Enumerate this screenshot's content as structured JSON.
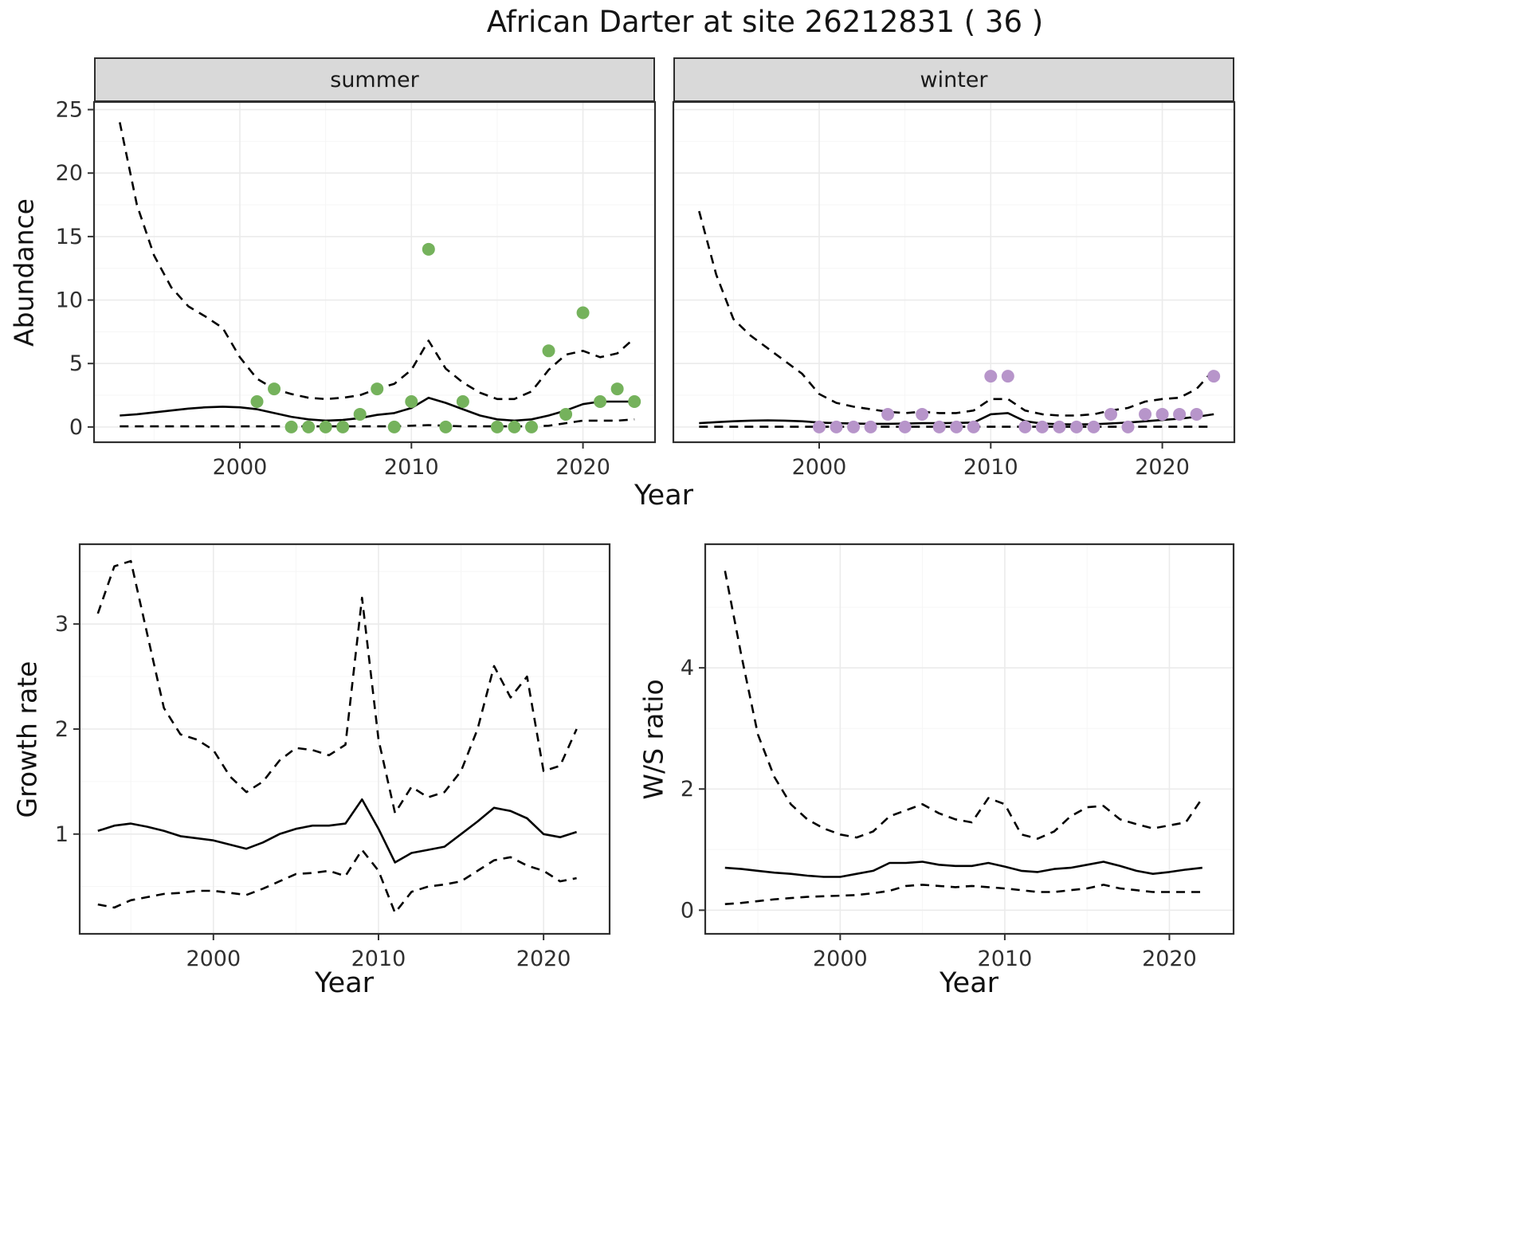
{
  "title": "African Darter at site 26212831 ( 36 )",
  "axes": {
    "abundance_label": "Abundance",
    "year_label": "Year",
    "growth_label": "Growth rate",
    "ws_label": "W/S ratio"
  },
  "colors": {
    "summer_point": "#75b25c",
    "winter_point": "#b795ca",
    "line": "#000000",
    "strip_bg": "#d9d9d9",
    "grid_major": "#ebebeb",
    "grid_minor": "#f6f6f6",
    "panel_border": "#2e2e2e",
    "tick_label": "#303030"
  },
  "chart_data": [
    {
      "id": "abundance-summer",
      "type": "scatter",
      "facet": "summer",
      "xlabel": "Year",
      "ylabel": "Abundance",
      "xlim": [
        1991.5,
        2024.2
      ],
      "ylim": [
        -1.2,
        25.6
      ],
      "xticks": [
        2000,
        2010,
        2020
      ],
      "yticks": [
        0,
        5,
        10,
        15,
        20,
        25
      ],
      "legend": "none",
      "grid": true,
      "years": [
        1993,
        1994,
        1995,
        1996,
        1997,
        1998,
        1999,
        2000,
        2001,
        2002,
        2003,
        2004,
        2005,
        2006,
        2007,
        2008,
        2009,
        2010,
        2011,
        2012,
        2013,
        2014,
        2015,
        2016,
        2017,
        2018,
        2019,
        2020,
        2021,
        2022,
        2023
      ],
      "fit": [
        0.9,
        1.0,
        1.15,
        1.3,
        1.45,
        1.55,
        1.6,
        1.55,
        1.4,
        1.1,
        0.8,
        0.6,
        0.5,
        0.55,
        0.7,
        0.95,
        1.1,
        1.5,
        2.3,
        1.9,
        1.4,
        0.9,
        0.6,
        0.5,
        0.6,
        0.9,
        1.3,
        1.8,
        2.0,
        2.0,
        2.0
      ],
      "upper": [
        24,
        17.5,
        13.5,
        11,
        9.5,
        8.7,
        7.8,
        5.5,
        3.8,
        3.0,
        2.6,
        2.3,
        2.2,
        2.3,
        2.5,
        3.0,
        3.4,
        4.5,
        6.8,
        4.6,
        3.5,
        2.7,
        2.2,
        2.2,
        2.8,
        4.5,
        5.7,
        6.0,
        5.5,
        5.8,
        7.0
      ],
      "lower": [
        0.05,
        0.05,
        0.05,
        0.05,
        0.05,
        0.05,
        0.05,
        0.05,
        0.05,
        0.05,
        0.05,
        0.05,
        0.05,
        0.05,
        0.05,
        0.05,
        0.05,
        0.1,
        0.15,
        0.1,
        0.05,
        0.05,
        0.05,
        0.05,
        0.05,
        0.1,
        0.3,
        0.5,
        0.5,
        0.5,
        0.6
      ],
      "points": {
        "x": [
          2001,
          2002,
          2003,
          2004,
          2005,
          2006,
          2007,
          2008,
          2009,
          2010,
          2011,
          2012,
          2013,
          2015,
          2016,
          2017,
          2018,
          2019,
          2020,
          2021,
          2022,
          2023
        ],
        "y": [
          2,
          3,
          0,
          0,
          0,
          0,
          1,
          3,
          0,
          2,
          14,
          0,
          2,
          0,
          0,
          0,
          6,
          1,
          9,
          2,
          3,
          2
        ]
      }
    },
    {
      "id": "abundance-winter",
      "type": "scatter",
      "facet": "winter",
      "xlabel": "Year",
      "ylabel": "Abundance",
      "xlim": [
        1991.5,
        2024.2
      ],
      "ylim": [
        -1.2,
        25.6
      ],
      "xticks": [
        2000,
        2010,
        2020
      ],
      "yticks": [
        0,
        5,
        10,
        15,
        20,
        25
      ],
      "legend": "none",
      "grid": true,
      "years": [
        1993,
        1994,
        1995,
        1996,
        1997,
        1998,
        1999,
        2000,
        2001,
        2002,
        2003,
        2004,
        2005,
        2006,
        2007,
        2008,
        2009,
        2010,
        2011,
        2012,
        2013,
        2014,
        2015,
        2016,
        2017,
        2018,
        2019,
        2020,
        2021,
        2022,
        2023
      ],
      "fit": [
        0.3,
        0.38,
        0.45,
        0.5,
        0.52,
        0.5,
        0.45,
        0.35,
        0.3,
        0.27,
        0.25,
        0.25,
        0.27,
        0.3,
        0.3,
        0.32,
        0.35,
        1.0,
        1.1,
        0.45,
        0.27,
        0.22,
        0.2,
        0.22,
        0.28,
        0.35,
        0.45,
        0.55,
        0.65,
        0.8,
        1.0
      ],
      "upper": [
        17,
        12,
        8.5,
        7.2,
        6.2,
        5.2,
        4.2,
        2.6,
        1.9,
        1.6,
        1.4,
        1.2,
        1.1,
        1.2,
        1.1,
        1.1,
        1.3,
        2.2,
        2.2,
        1.3,
        1.0,
        0.9,
        0.9,
        1.0,
        1.3,
        1.5,
        2.0,
        2.2,
        2.3,
        3.0,
        4.5
      ],
      "lower": [
        0.02,
        0.02,
        0.02,
        0.02,
        0.02,
        0.02,
        0.02,
        0.02,
        0.02,
        0.02,
        0.02,
        0.02,
        0.02,
        0.02,
        0.02,
        0.02,
        0.02,
        0.02,
        0.02,
        0.02,
        0.02,
        0.02,
        0.02,
        0.02,
        0.02,
        0.02,
        0.02,
        0.02,
        0.02,
        0.02,
        0.02
      ],
      "points": {
        "x": [
          2000,
          2001,
          2002,
          2003,
          2004,
          2005,
          2006,
          2007,
          2008,
          2009,
          2010,
          2011,
          2012,
          2013,
          2014,
          2015,
          2016,
          2017,
          2018,
          2019,
          2020,
          2021,
          2022,
          2023
        ],
        "y": [
          0,
          0,
          0,
          0,
          1,
          0,
          1,
          0,
          0,
          0,
          4,
          4,
          0,
          0,
          0,
          0,
          0,
          1,
          0,
          1,
          1,
          1,
          1,
          4
        ]
      }
    },
    {
      "id": "growth-rate",
      "type": "line",
      "facet": null,
      "xlabel": "Year",
      "ylabel": "Growth rate",
      "xlim": [
        1991.9,
        2024.0
      ],
      "ylim": [
        0.05,
        3.76
      ],
      "xticks": [
        2000,
        2010,
        2020
      ],
      "yticks": [
        1,
        2,
        3
      ],
      "legend": "none",
      "grid": true,
      "years": [
        1993,
        1994,
        1995,
        1996,
        1997,
        1998,
        1999,
        2000,
        2001,
        2002,
        2003,
        2004,
        2005,
        2006,
        2007,
        2008,
        2009,
        2010,
        2011,
        2012,
        2013,
        2014,
        2015,
        2016,
        2017,
        2018,
        2019,
        2020,
        2021,
        2022
      ],
      "fit": [
        1.03,
        1.08,
        1.1,
        1.07,
        1.03,
        0.98,
        0.96,
        0.94,
        0.9,
        0.86,
        0.92,
        1.0,
        1.05,
        1.08,
        1.08,
        1.1,
        1.33,
        1.05,
        0.73,
        0.82,
        0.85,
        0.88,
        1.0,
        1.12,
        1.25,
        1.22,
        1.15,
        1.0,
        0.97,
        1.02
      ],
      "upper": [
        3.1,
        3.55,
        3.6,
        2.9,
        2.2,
        1.95,
        1.9,
        1.8,
        1.55,
        1.4,
        1.5,
        1.7,
        1.82,
        1.8,
        1.75,
        1.85,
        3.25,
        1.9,
        1.2,
        1.45,
        1.35,
        1.4,
        1.6,
        2.0,
        2.6,
        2.3,
        2.5,
        1.6,
        1.65,
        2.0
      ],
      "lower": [
        0.33,
        0.3,
        0.37,
        0.4,
        0.43,
        0.44,
        0.46,
        0.46,
        0.44,
        0.42,
        0.48,
        0.55,
        0.62,
        0.63,
        0.65,
        0.6,
        0.85,
        0.65,
        0.25,
        0.45,
        0.5,
        0.52,
        0.55,
        0.65,
        0.75,
        0.78,
        0.7,
        0.65,
        0.55,
        0.58
      ]
    },
    {
      "id": "ws-ratio",
      "type": "line",
      "facet": null,
      "xlabel": "Year",
      "ylabel": "W/S ratio",
      "xlim": [
        1991.8,
        2023.9
      ],
      "ylim": [
        -0.39,
        6.04
      ],
      "xticks": [
        2000,
        2010,
        2020
      ],
      "yticks": [
        0,
        2,
        4
      ],
      "legend": "none",
      "grid": true,
      "years": [
        1993,
        1994,
        1995,
        1996,
        1997,
        1998,
        1999,
        2000,
        2001,
        2002,
        2003,
        2004,
        2005,
        2006,
        2007,
        2008,
        2009,
        2010,
        2011,
        2012,
        2013,
        2014,
        2015,
        2016,
        2017,
        2018,
        2019,
        2020,
        2021,
        2022
      ],
      "fit": [
        0.7,
        0.68,
        0.65,
        0.62,
        0.6,
        0.57,
        0.55,
        0.55,
        0.6,
        0.65,
        0.78,
        0.78,
        0.8,
        0.75,
        0.73,
        0.73,
        0.78,
        0.72,
        0.65,
        0.63,
        0.68,
        0.7,
        0.75,
        0.8,
        0.73,
        0.65,
        0.6,
        0.63,
        0.67,
        0.7
      ],
      "upper": [
        5.6,
        4.2,
        2.9,
        2.2,
        1.75,
        1.5,
        1.35,
        1.25,
        1.2,
        1.3,
        1.55,
        1.65,
        1.75,
        1.6,
        1.5,
        1.45,
        1.85,
        1.75,
        1.25,
        1.18,
        1.3,
        1.55,
        1.7,
        1.72,
        1.5,
        1.42,
        1.35,
        1.4,
        1.45,
        1.85
      ],
      "lower": [
        0.1,
        0.12,
        0.15,
        0.18,
        0.2,
        0.22,
        0.23,
        0.24,
        0.25,
        0.28,
        0.32,
        0.4,
        0.42,
        0.4,
        0.38,
        0.4,
        0.38,
        0.36,
        0.33,
        0.3,
        0.3,
        0.33,
        0.36,
        0.42,
        0.36,
        0.33,
        0.3,
        0.3,
        0.3,
        0.3
      ]
    }
  ]
}
